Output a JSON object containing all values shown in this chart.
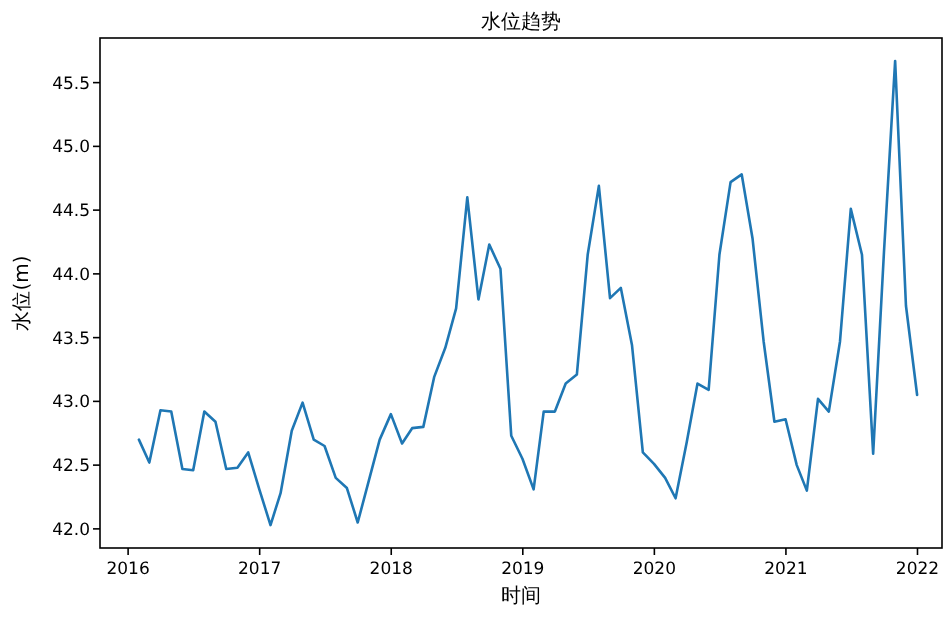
{
  "chart_data": {
    "type": "line",
    "title": "水位趋势",
    "xlabel": "时间",
    "ylabel": "水位(m)",
    "x": [
      "2016-01-31",
      "2016-02-29",
      "2016-03-31",
      "2016-04-30",
      "2016-05-31",
      "2016-06-30",
      "2016-07-31",
      "2016-08-31",
      "2016-09-30",
      "2016-10-31",
      "2016-11-30",
      "2016-12-31",
      "2017-01-31",
      "2017-02-28",
      "2017-03-31",
      "2017-04-30",
      "2017-05-31",
      "2017-06-30",
      "2017-07-31",
      "2017-08-31",
      "2017-09-30",
      "2017-10-31",
      "2017-11-30",
      "2017-12-31",
      "2018-01-31",
      "2018-02-28",
      "2018-03-31",
      "2018-04-30",
      "2018-05-31",
      "2018-06-30",
      "2018-07-31",
      "2018-08-31",
      "2018-09-30",
      "2018-10-31",
      "2018-11-30",
      "2018-12-31",
      "2019-01-31",
      "2019-02-28",
      "2019-03-31",
      "2019-04-30",
      "2019-05-31",
      "2019-06-30",
      "2019-07-31",
      "2019-08-31",
      "2019-09-30",
      "2019-10-31",
      "2019-11-30",
      "2019-12-31",
      "2020-01-31",
      "2020-02-29",
      "2020-03-31",
      "2020-04-30",
      "2020-05-31",
      "2020-06-30",
      "2020-07-31",
      "2020-08-31",
      "2020-09-30",
      "2020-10-31",
      "2020-11-30",
      "2020-12-31",
      "2021-01-31",
      "2021-02-28",
      "2021-03-31",
      "2021-04-30",
      "2021-05-31",
      "2021-06-30",
      "2021-07-31",
      "2021-08-31",
      "2021-09-30",
      "2021-10-31",
      "2021-11-30",
      "2021-12-31"
    ],
    "series": [
      {
        "color": "#1f77b4",
        "values": [
          42.7,
          42.52,
          42.93,
          42.92,
          42.47,
          42.46,
          42.92,
          42.84,
          42.47,
          42.48,
          42.6,
          42.31,
          42.03,
          42.28,
          42.77,
          42.99,
          42.7,
          42.65,
          42.4,
          42.32,
          42.05,
          42.38,
          42.7,
          42.9,
          42.67,
          42.79,
          42.8,
          43.19,
          43.42,
          43.73,
          44.6,
          43.8,
          44.23,
          44.04,
          42.73,
          42.55,
          42.31,
          42.92,
          42.92,
          43.14,
          43.21,
          44.15,
          44.69,
          43.81,
          43.89,
          43.44,
          42.6,
          42.51,
          42.4,
          42.24,
          42.68,
          43.14,
          43.09,
          44.15,
          44.72,
          44.78,
          44.28,
          43.47,
          42.84,
          42.86,
          42.5,
          42.3,
          43.02,
          42.92,
          43.47,
          44.51,
          44.15,
          42.59,
          44.17,
          45.67,
          43.75,
          43.05
        ]
      }
    ],
    "xlim": [
      "2015-10-15",
      "2022-03-10"
    ],
    "ylim": [
      41.85,
      45.85
    ],
    "xticks": [
      "2016",
      "2017",
      "2018",
      "2019",
      "2020",
      "2021",
      "2022"
    ],
    "yticks": [
      {
        "value": 42,
        "label": "42.0"
      },
      42.5,
      {
        "value": 43,
        "label": "43.0"
      },
      43.5,
      {
        "value": 44,
        "label": "44.0"
      },
      44.5,
      {
        "value": 45,
        "label": "45.0"
      },
      45.5
    ],
    "grid": false
  }
}
